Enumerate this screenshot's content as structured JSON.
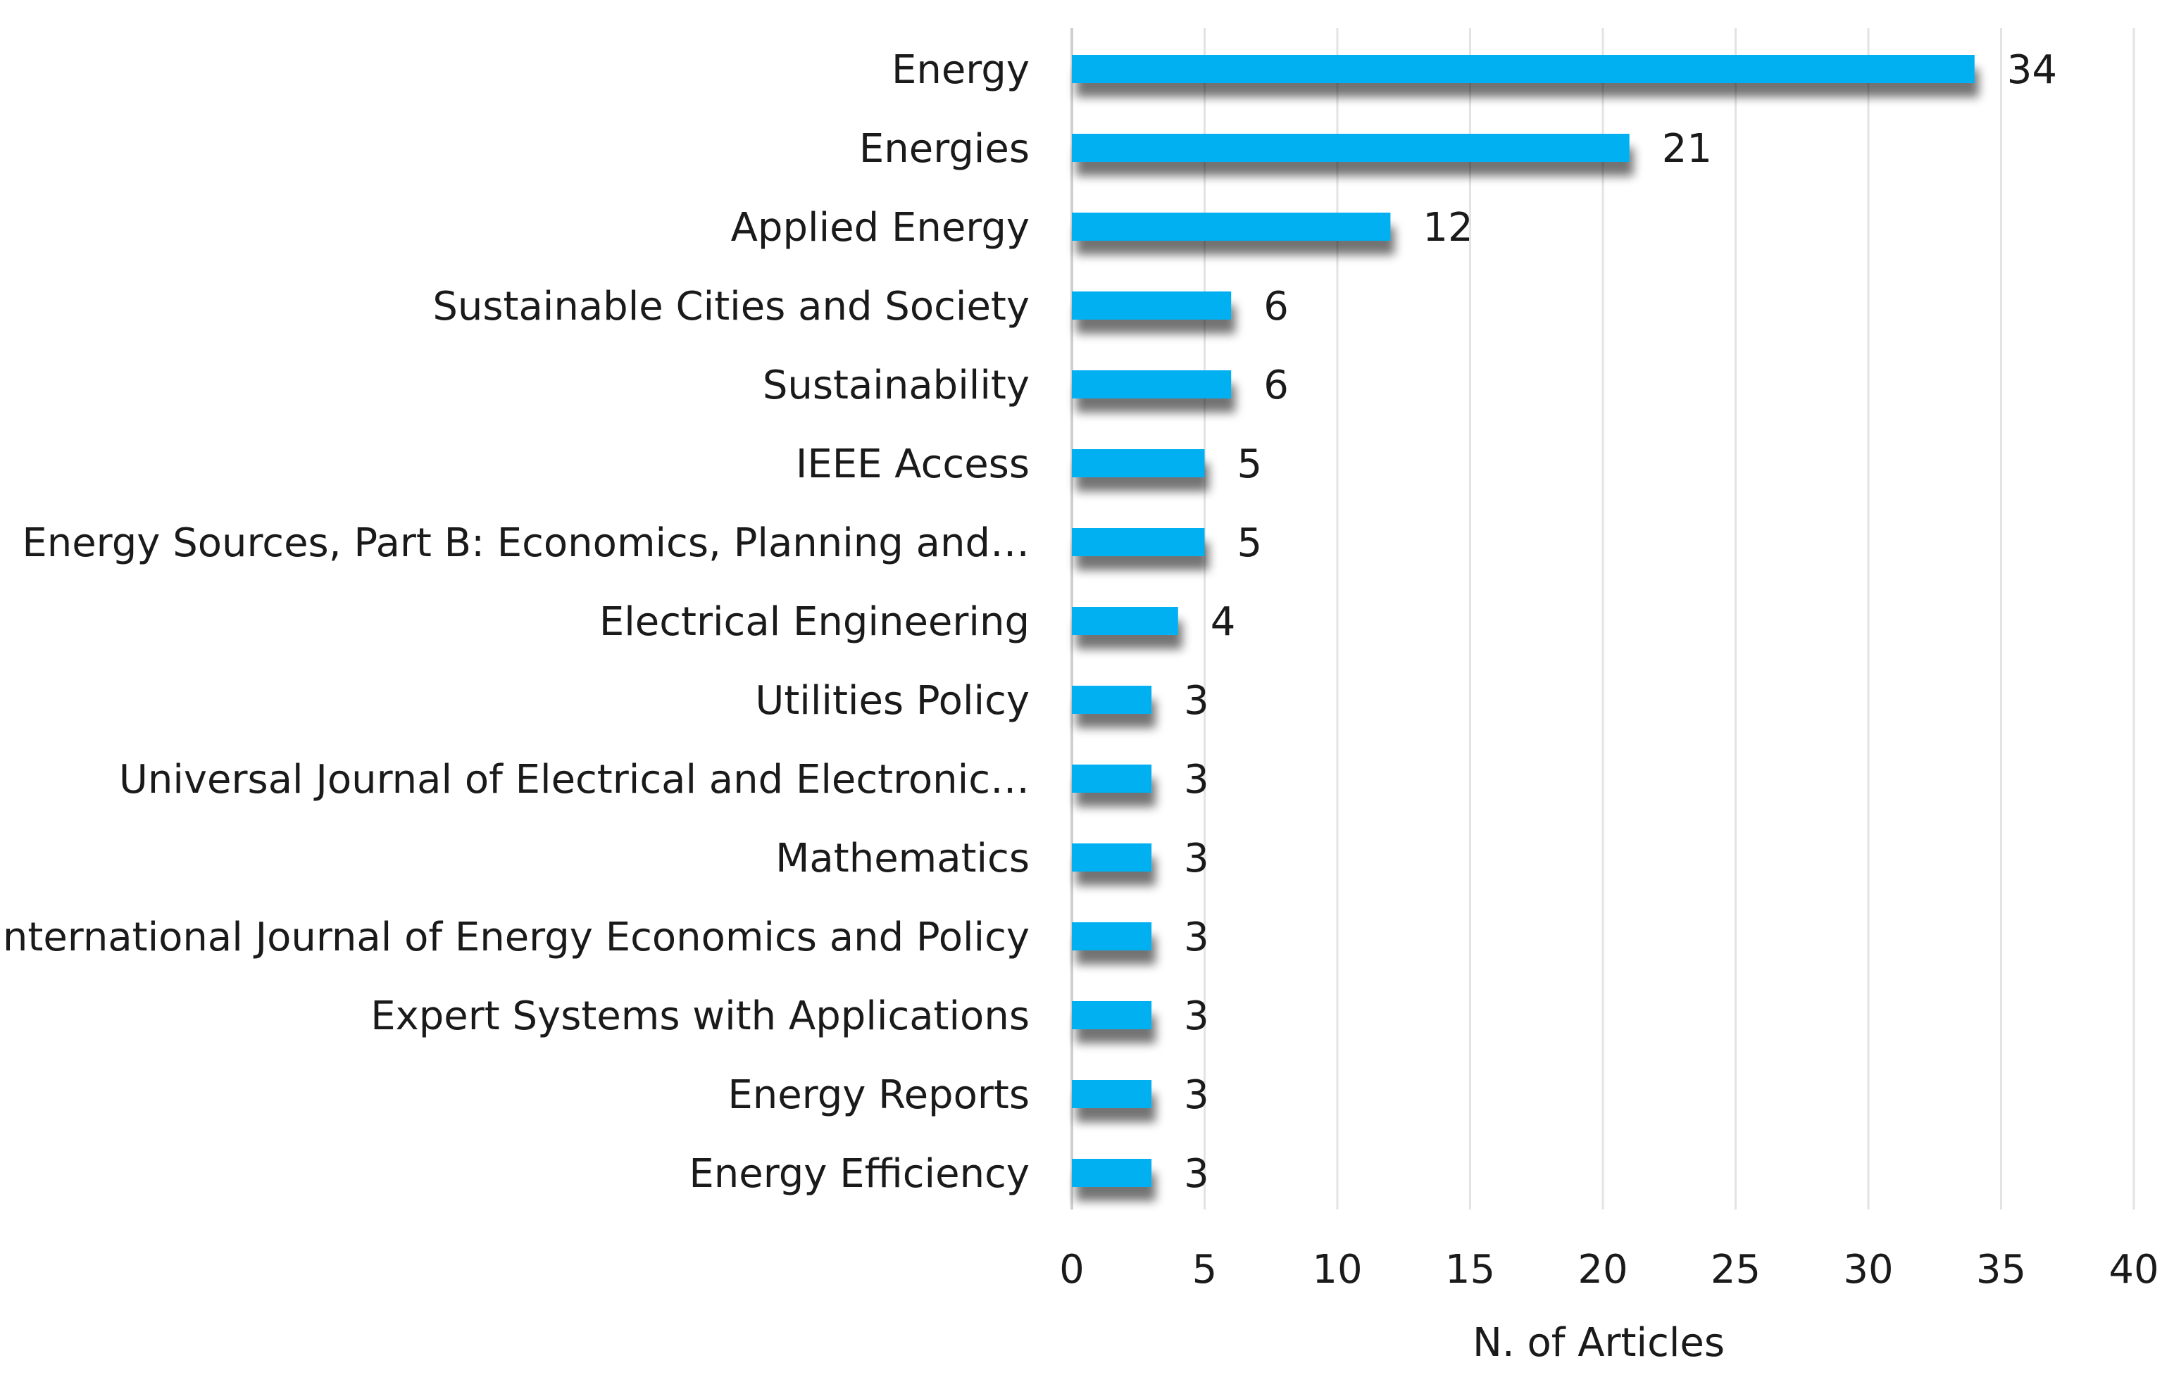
{
  "chart_data": {
    "type": "bar",
    "orientation": "horizontal",
    "title": "",
    "xlabel": "N. of Articles",
    "ylabel": "",
    "xlim": [
      0,
      40
    ],
    "x_ticks": [
      0,
      5,
      10,
      15,
      20,
      25,
      30,
      35,
      40
    ],
    "grid": true,
    "bar_color": "#00B0F0",
    "shadow_color": "#8c8c8c",
    "categories": [
      "Energy",
      "Energies",
      "Applied Energy",
      "Sustainable Cities and Society",
      "Sustainability",
      "IEEE Access",
      "Energy Sources, Part B: Economics, Planning and…",
      "Electrical Engineering",
      "Utilities Policy",
      "Universal Journal of Electrical and Electronic…",
      "Mathematics",
      "International Journal of Energy Economics and Policy",
      "Expert Systems with Applications",
      "Energy Reports",
      "Energy Efficiency"
    ],
    "values": [
      34,
      21,
      12,
      6,
      6,
      5,
      5,
      4,
      3,
      3,
      3,
      3,
      3,
      3,
      3
    ]
  }
}
